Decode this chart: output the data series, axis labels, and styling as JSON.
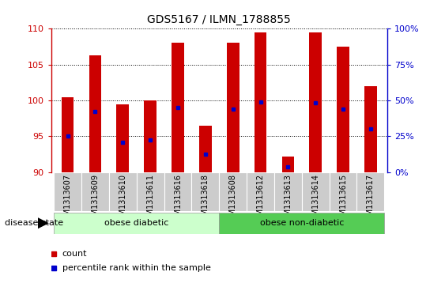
{
  "title": "GDS5167 / ILMN_1788855",
  "samples": [
    "GSM1313607",
    "GSM1313609",
    "GSM1313610",
    "GSM1313611",
    "GSM1313616",
    "GSM1313618",
    "GSM1313608",
    "GSM1313612",
    "GSM1313613",
    "GSM1313614",
    "GSM1313615",
    "GSM1313617"
  ],
  "bar_tops": [
    100.5,
    106.3,
    99.5,
    100.0,
    108.0,
    96.5,
    108.0,
    109.5,
    92.2,
    109.5,
    107.5,
    102.0
  ],
  "bar_bottoms": [
    90,
    90,
    90,
    90,
    90,
    90,
    90,
    90,
    90,
    90,
    90,
    90
  ],
  "percentile_values": [
    95.0,
    98.5,
    94.2,
    94.5,
    99.0,
    92.5,
    98.8,
    99.8,
    90.8,
    99.7,
    98.8,
    96.0
  ],
  "bar_color": "#cc0000",
  "percentile_color": "#0000cc",
  "ylim": [
    90,
    110
  ],
  "yticks": [
    90,
    95,
    100,
    105,
    110
  ],
  "right_yticks": [
    0,
    25,
    50,
    75,
    100
  ],
  "group1_label": "obese diabetic",
  "group2_label": "obese non-diabetic",
  "group1_count": 6,
  "group2_count": 6,
  "group1_color": "#ccffcc",
  "group2_color": "#55cc55",
  "disease_state_label": "disease state",
  "legend_count_label": "count",
  "legend_percentile_label": "percentile rank within the sample",
  "left_tick_color": "#cc0000",
  "right_tick_color": "#0000cc",
  "bar_width": 0.45,
  "label_fontsize": 7,
  "tick_fontsize": 8
}
